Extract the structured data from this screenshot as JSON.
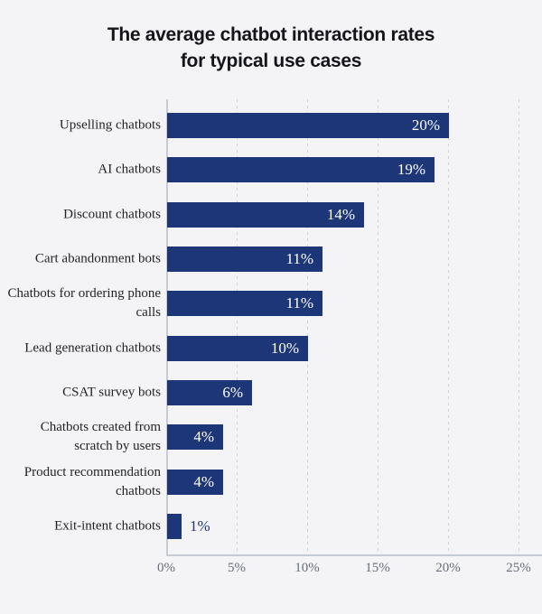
{
  "title_lines": [
    "The average chatbot interaction rates",
    "for typical use cases"
  ],
  "chart_data": {
    "type": "bar",
    "orientation": "horizontal",
    "title": "The average chatbot interaction rates for typical use cases",
    "categories": [
      "Upselling chatbots",
      "AI chatbots",
      "Discount chatbots",
      "Cart abandonment bots",
      "Chatbots for ordering phone calls",
      "Lead generation chatbots",
      "CSAT survey bots",
      "Chatbots created from scratch by users",
      "Product recommendation chatbots",
      "Exit-intent chatbots"
    ],
    "values": [
      20,
      19,
      14,
      11,
      11,
      10,
      6,
      4,
      4,
      1
    ],
    "value_labels": [
      "20%",
      "19%",
      "14%",
      "11%",
      "11%",
      "10%",
      "6%",
      "4%",
      "4%",
      "1%"
    ],
    "x_tick_values": [
      0,
      5,
      10,
      15,
      20,
      25
    ],
    "x_tick_labels": [
      "0%",
      "5%",
      "10%",
      "15%",
      "20%",
      "25%"
    ],
    "xlim": [
      0,
      25
    ],
    "grid": "vertical-dashed",
    "legend": "none",
    "colors": {
      "bar": "#1d3678",
      "value_label_inside": "#ffffff",
      "value_label_outside": "#1d3678",
      "background": "#f4f4f6",
      "axis_line": "#c6cad2",
      "gridline": "#cfd3da",
      "tick_label": "#666d7a",
      "category_label": "#1f2126",
      "title": "#14151a"
    }
  }
}
